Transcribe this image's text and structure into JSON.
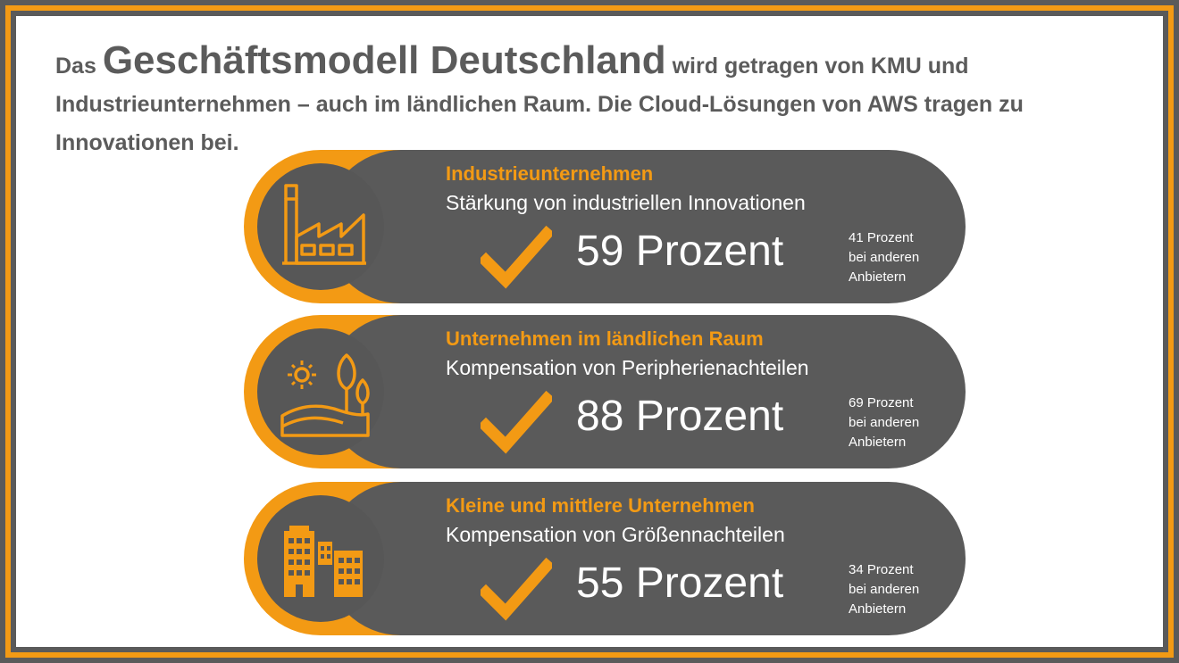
{
  "headline": {
    "prefix": "Das",
    "emphasis": "Geschäftsmodell Deutschland",
    "rest": "wird getragen von KMU und Industrieunternehmen – auch im ländlichen Raum. Die Cloud-Lösungen von AWS tragen zu Innovationen bei."
  },
  "cards": [
    {
      "icon": "factory-icon",
      "title": "Industrieunternehmen",
      "subtitle": "Stärkung von industriellen Innovationen",
      "percent": "59 Prozent",
      "other": "41 Prozent\nbei anderen\nAnbietern"
    },
    {
      "icon": "rural-landscape-icon",
      "title": "Unternehmen im ländlichen  Raum",
      "subtitle": "Kompensation von Peripherienachteilen",
      "percent": "88 Prozent",
      "other": "69 Prozent\nbei anderen\nAnbietern"
    },
    {
      "icon": "office-buildings-icon",
      "title": "Kleine und mittlere Unternehmen",
      "subtitle": "Kompensation von Größennachteilen",
      "percent": "55 Prozent",
      "other": "34 Prozent\nbei anderen\nAnbietern"
    }
  ],
  "colors": {
    "accent": "#f39a14",
    "dark": "#5a5a5a",
    "text": "#5b5b5b"
  }
}
